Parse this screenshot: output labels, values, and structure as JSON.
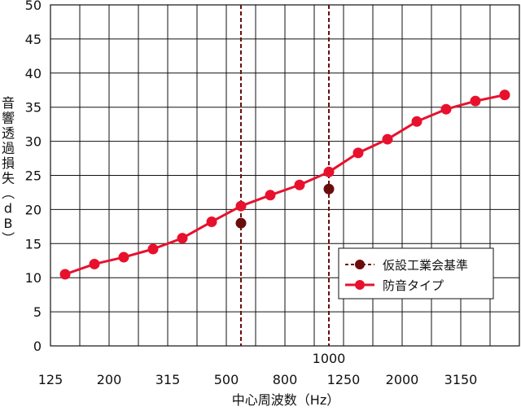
{
  "chart_data": {
    "type": "line",
    "ylabel": "音響透過損失（dB）",
    "xlabel": "中心周波数（Hz）",
    "ylim": [
      0,
      50
    ],
    "yticks": [
      0,
      5,
      10,
      15,
      20,
      25,
      30,
      35,
      40,
      45,
      50
    ],
    "x_tick_labels": [
      "125",
      "200",
      "315",
      "500",
      "800",
      "1250",
      "2000",
      "3150"
    ],
    "x_marker_label": "1000",
    "x": [
      "125",
      "160",
      "200",
      "250",
      "315",
      "400",
      "500",
      "630",
      "800",
      "1000",
      "1250",
      "1600",
      "2000",
      "2500",
      "3150",
      "4000"
    ],
    "grid": true,
    "legend_position": "bottom-right",
    "series": [
      {
        "name": "仮設工業会基準",
        "style": "dashed-vertical-with-dots",
        "color": "#6b0d0d",
        "points": [
          {
            "x": "500",
            "y": 18
          },
          {
            "x": "1000",
            "y": 23
          }
        ]
      },
      {
        "name": "防音タイプ",
        "style": "line-with-dots",
        "color": "#e8112d",
        "values": [
          10.5,
          12,
          13,
          14.2,
          15.8,
          18.2,
          20.5,
          22.1,
          23.6,
          25.5,
          28.3,
          30.3,
          32.9,
          34.7,
          35.9,
          36.8
        ]
      }
    ]
  }
}
